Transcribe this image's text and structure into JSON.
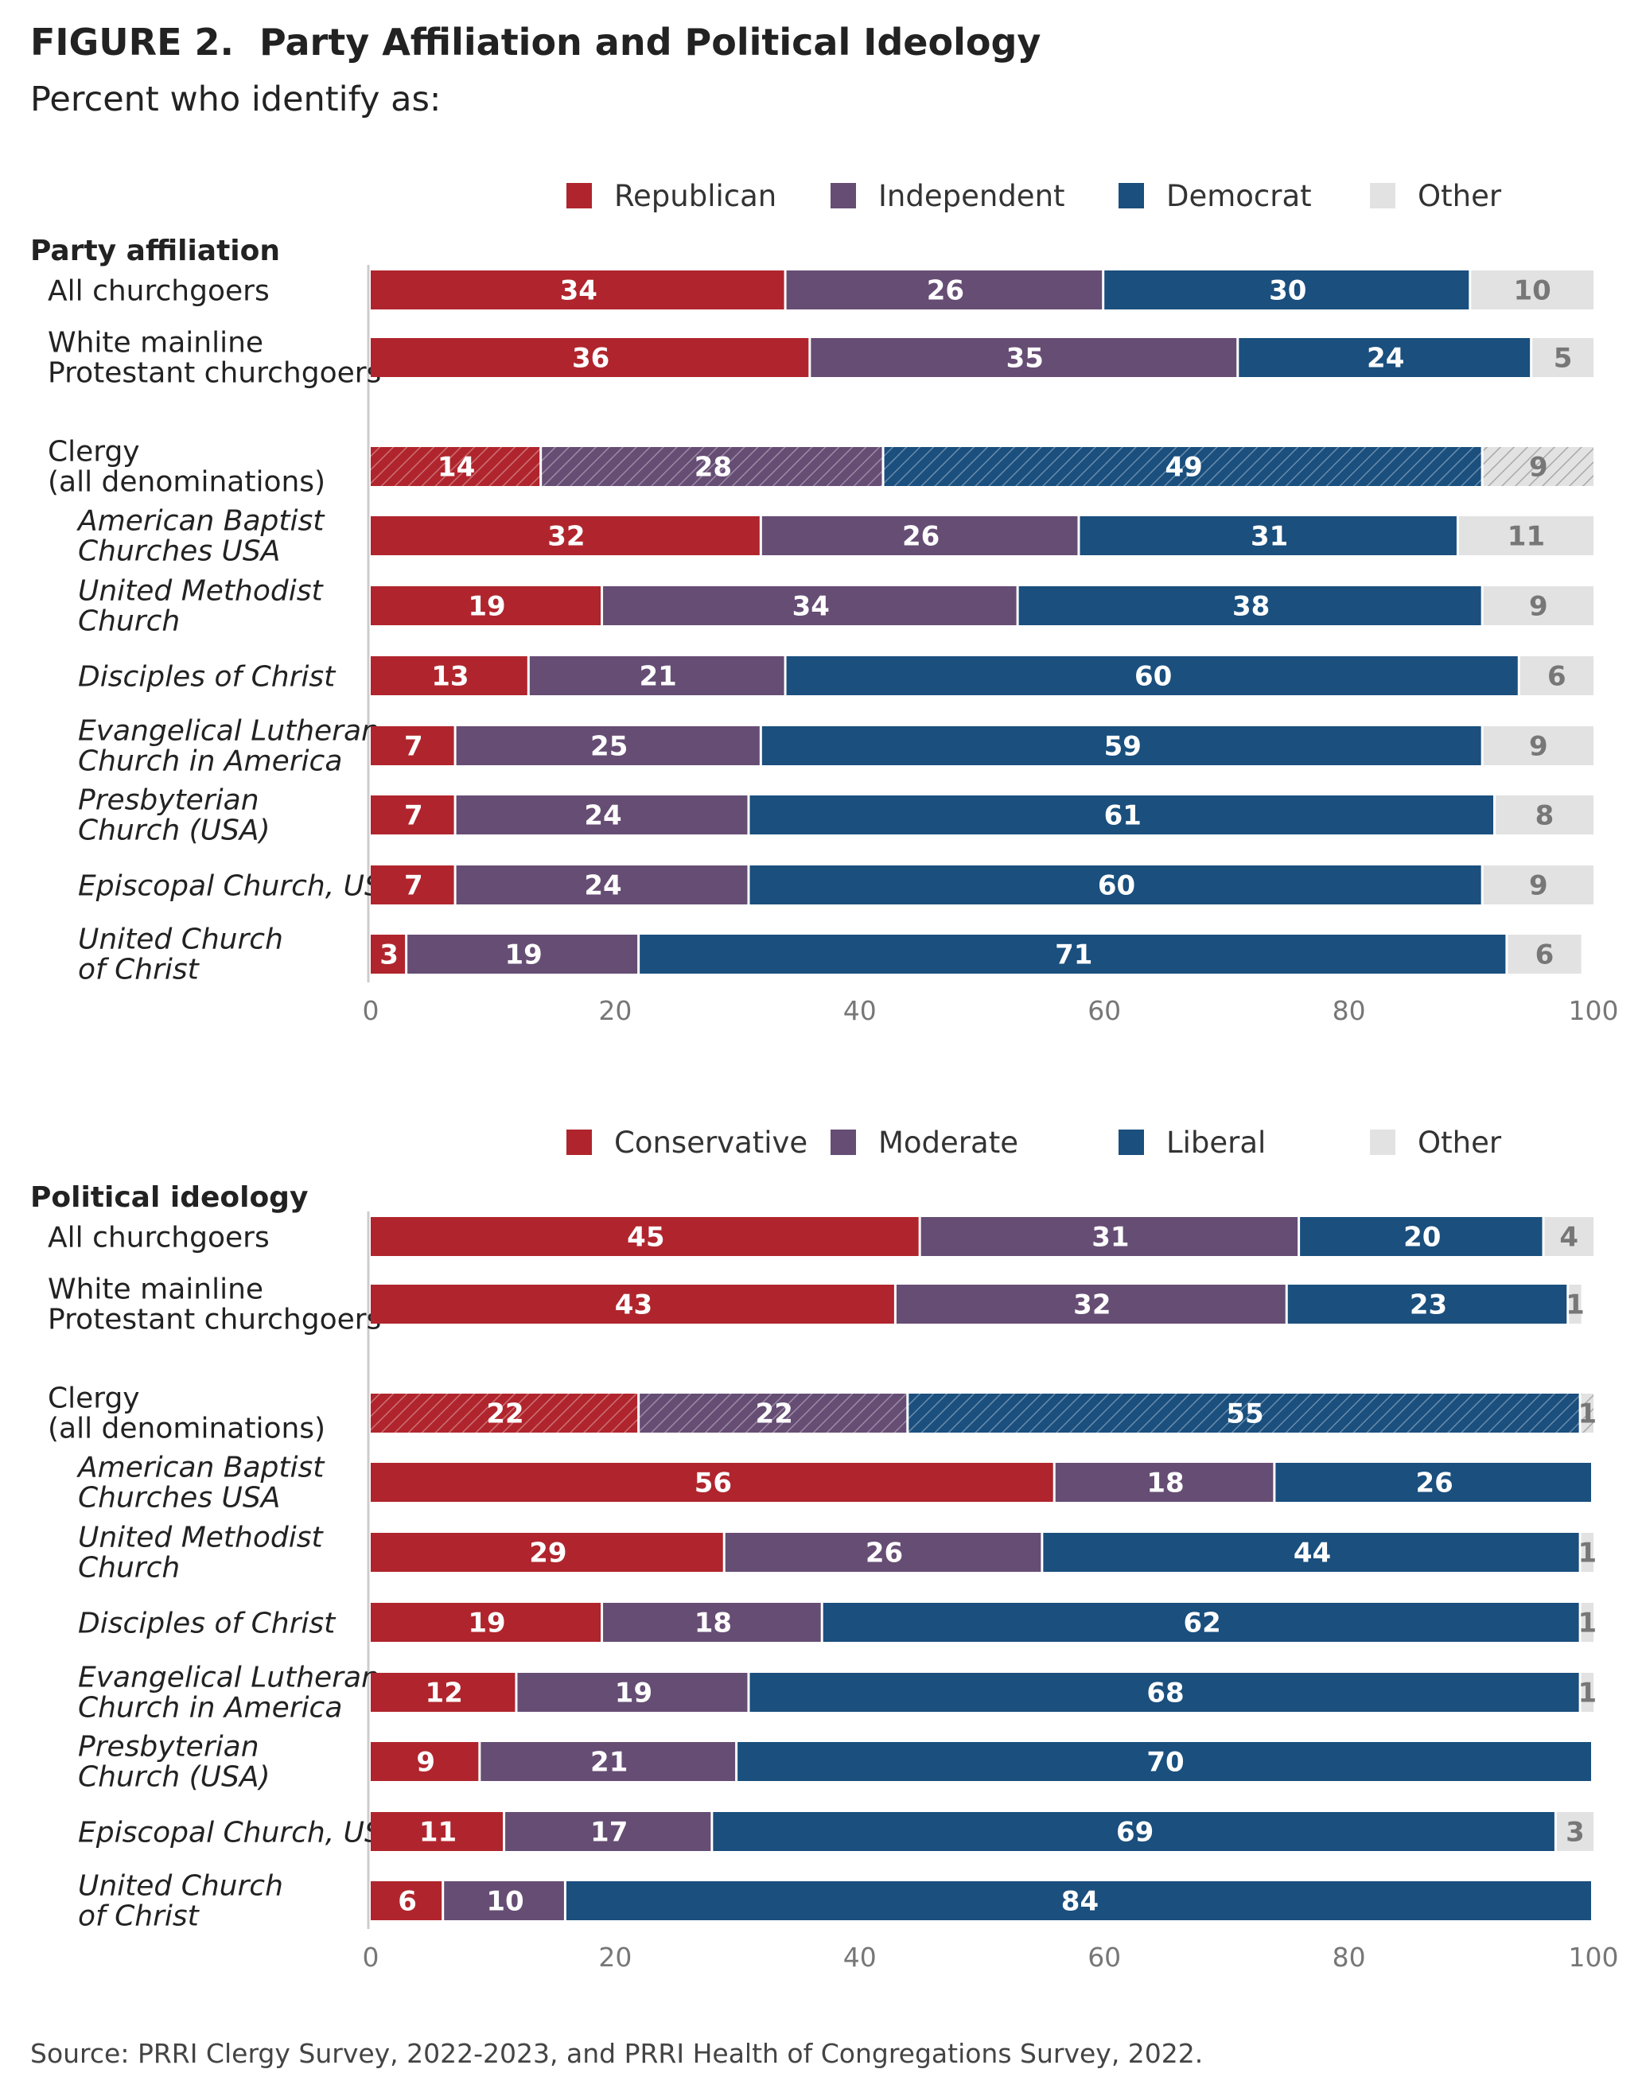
{
  "figure": {
    "title": "FIGURE 2.  Party Affiliation and Political Ideology",
    "subtitle": "Percent who identify as:",
    "source": "Source: PRRI Clergy Survey, 2022-2023, and PRRI Health of Congregations Survey, 2022."
  },
  "colors": {
    "red": "#b0252d",
    "purple": "#664d74",
    "blue": "#1a4f7e",
    "other": "#e2e2e2",
    "bar_label": "#ffffff",
    "other_label": "#777777",
    "axis": "#cccccc",
    "tick": "#777777"
  },
  "chart_data": [
    {
      "type": "bar",
      "orientation": "horizontal",
      "stacked": true,
      "title": "Party affiliation",
      "legend_position": "top",
      "xlim": [
        0,
        100
      ],
      "xticks": [
        0,
        20,
        40,
        60,
        80,
        100
      ],
      "grid": false,
      "categories": [
        "All churchgoers",
        "White mainline Protestant churchgoers",
        "Clergy (all denominations)",
        "American Baptist Churches USA",
        "United Methodist Church",
        "Disciples of Christ",
        "Evangelical Lutheran Church in America",
        "Presbyterian Church (USA)",
        "Episcopal Church, USA",
        "United Church of Christ"
      ],
      "category_lines": [
        [
          "All churchgoers"
        ],
        [
          "White mainline",
          "Protestant churchgoers"
        ],
        [
          "Clergy",
          "(all denominations)"
        ],
        [
          "American Baptist",
          "Churches USA"
        ],
        [
          "United Methodist",
          "Church"
        ],
        [
          "Disciples of Christ"
        ],
        [
          "Evangelical Lutheran",
          "Church in America"
        ],
        [
          "Presbyterian",
          "Church (USA)"
        ],
        [
          "Episcopal Church, USA"
        ],
        [
          "United Church",
          "of Christ"
        ]
      ],
      "category_italic": [
        false,
        false,
        false,
        true,
        true,
        true,
        true,
        true,
        true,
        true
      ],
      "hatched_category": "Clergy (all denominations)",
      "series": [
        {
          "name": "Republican",
          "color": "#b0252d",
          "values": [
            34,
            36,
            14,
            32,
            19,
            13,
            7,
            7,
            7,
            3
          ]
        },
        {
          "name": "Independent",
          "color": "#664d74",
          "values": [
            26,
            35,
            28,
            26,
            34,
            21,
            25,
            24,
            24,
            19
          ]
        },
        {
          "name": "Democrat",
          "color": "#1a4f7e",
          "values": [
            30,
            24,
            49,
            31,
            38,
            60,
            59,
            61,
            60,
            71
          ]
        },
        {
          "name": "Other",
          "color": "#e2e2e2",
          "values": [
            10,
            5,
            9,
            11,
            9,
            6,
            9,
            8,
            9,
            6
          ]
        }
      ]
    },
    {
      "type": "bar",
      "orientation": "horizontal",
      "stacked": true,
      "title": "Political ideology",
      "legend_position": "top",
      "xlim": [
        0,
        100
      ],
      "xticks": [
        0,
        20,
        40,
        60,
        80,
        100
      ],
      "grid": false,
      "categories": [
        "All churchgoers",
        "White mainline Protestant churchgoers",
        "Clergy (all denominations)",
        "American Baptist Churches USA",
        "United Methodist Church",
        "Disciples of Christ",
        "Evangelical Lutheran Church in America",
        "Presbyterian Church (USA)",
        "Episcopal Church, USA",
        "United Church of Christ"
      ],
      "category_lines": [
        [
          "All churchgoers"
        ],
        [
          "White mainline",
          "Protestant churchgoers"
        ],
        [
          "Clergy",
          "(all denominations)"
        ],
        [
          "American Baptist",
          "Churches USA"
        ],
        [
          "United Methodist",
          "Church"
        ],
        [
          "Disciples of Christ"
        ],
        [
          "Evangelical Lutheran",
          "Church in America"
        ],
        [
          "Presbyterian",
          "Church (USA)"
        ],
        [
          "Episcopal Church, USA"
        ],
        [
          "United Church",
          "of Christ"
        ]
      ],
      "category_italic": [
        false,
        false,
        false,
        true,
        true,
        true,
        true,
        true,
        true,
        true
      ],
      "hatched_category": "Clergy (all denominations)",
      "series": [
        {
          "name": "Conservative",
          "color": "#b0252d",
          "values": [
            45,
            43,
            22,
            56,
            29,
            19,
            12,
            9,
            11,
            6
          ]
        },
        {
          "name": "Moderate",
          "color": "#664d74",
          "values": [
            31,
            32,
            22,
            18,
            26,
            18,
            19,
            21,
            17,
            10
          ]
        },
        {
          "name": "Liberal",
          "color": "#1a4f7e",
          "values": [
            20,
            23,
            55,
            26,
            44,
            62,
            68,
            70,
            69,
            84
          ]
        },
        {
          "name": "Other",
          "color": "#e2e2e2",
          "values": [
            4,
            1,
            1,
            0,
            1,
            1,
            1,
            0,
            3,
            0
          ]
        }
      ]
    }
  ]
}
